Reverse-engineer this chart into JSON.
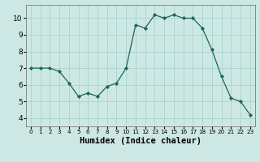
{
  "x": [
    0,
    1,
    2,
    3,
    4,
    5,
    6,
    7,
    8,
    9,
    10,
    11,
    12,
    13,
    14,
    15,
    16,
    17,
    18,
    19,
    20,
    21,
    22,
    23
  ],
  "y": [
    7.0,
    7.0,
    7.0,
    6.8,
    6.1,
    5.3,
    5.5,
    5.3,
    5.9,
    6.1,
    7.0,
    9.6,
    9.4,
    10.2,
    10.0,
    10.2,
    10.0,
    10.0,
    9.4,
    8.1,
    6.5,
    5.2,
    5.0,
    4.2
  ],
  "xlabel": "Humidex (Indice chaleur)",
  "bg_color": "#cde8e4",
  "grid_color": "#a8d4cc",
  "line_color": "#1a6655",
  "marker_color": "#1a6655",
  "xlim": [
    -0.5,
    23.5
  ],
  "ylim": [
    3.5,
    10.8
  ],
  "yticks": [
    4,
    5,
    6,
    7,
    8,
    9,
    10
  ],
  "xticks": [
    0,
    1,
    2,
    3,
    4,
    5,
    6,
    7,
    8,
    9,
    10,
    11,
    12,
    13,
    14,
    15,
    16,
    17,
    18,
    19,
    20,
    21,
    22,
    23
  ],
  "xtick_fontsize": 5.2,
  "ytick_fontsize": 6.5,
  "xlabel_fontsize": 7.5
}
